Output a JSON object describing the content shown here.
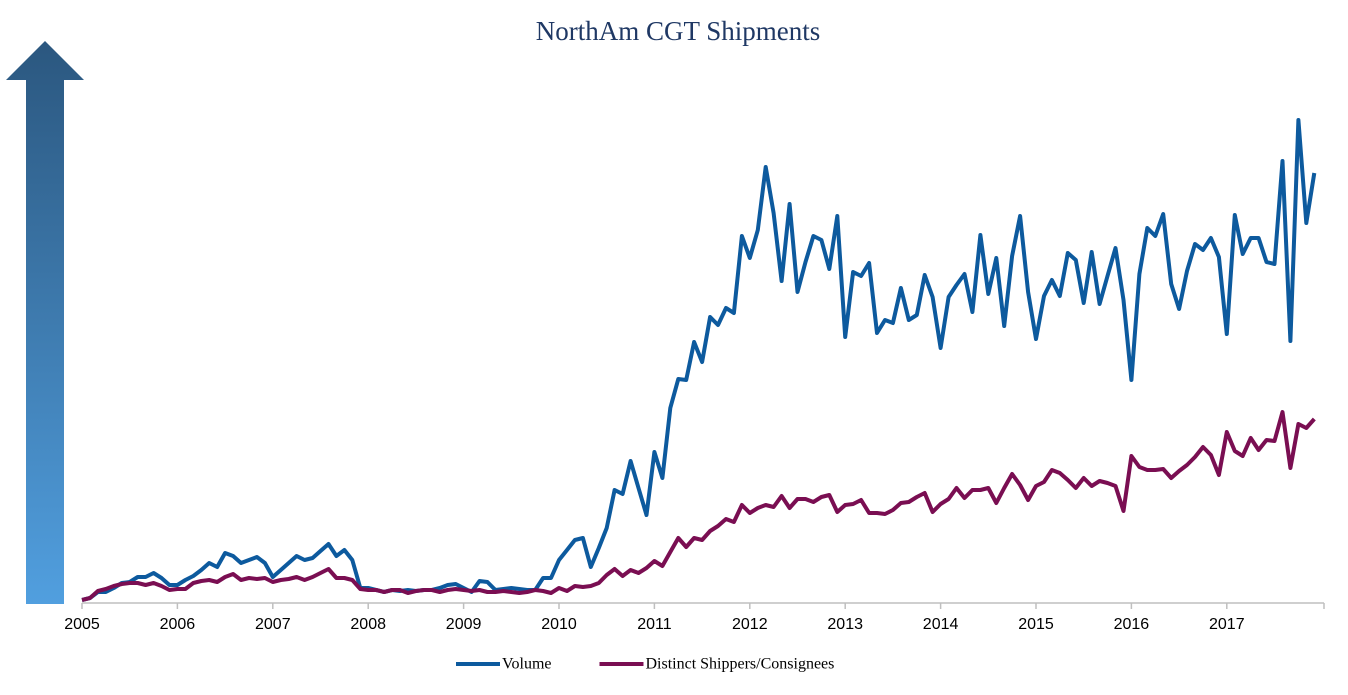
{
  "chart_data": {
    "type": "line",
    "title": "NorthAm CGT Shipments",
    "categories": [
      "2005",
      null,
      null,
      null,
      null,
      null,
      null,
      null,
      null,
      null,
      null,
      null,
      "2006",
      null,
      null,
      null,
      null,
      null,
      null,
      null,
      null,
      null,
      null,
      null,
      "2007",
      null,
      null,
      null,
      null,
      null,
      null,
      null,
      null,
      null,
      null,
      null,
      "2008",
      null,
      null,
      null,
      null,
      null,
      null,
      null,
      null,
      null,
      null,
      null,
      "2009",
      null,
      null,
      null,
      null,
      null,
      null,
      null,
      null,
      null,
      null,
      null,
      "2010",
      null,
      null,
      null,
      null,
      null,
      null,
      null,
      null,
      null,
      null,
      null,
      "2011",
      null,
      null,
      null,
      null,
      null,
      null,
      null,
      null,
      null,
      null,
      null,
      "2012",
      null,
      null,
      null,
      null,
      null,
      null,
      null,
      null,
      null,
      null,
      null,
      "2013",
      null,
      null,
      null,
      null,
      null,
      null,
      null,
      null,
      null,
      null,
      null,
      "2014",
      null,
      null,
      null,
      null,
      null,
      null,
      null,
      null,
      null,
      null,
      null,
      "2015",
      null,
      null,
      null,
      null,
      null,
      null,
      null,
      null,
      null,
      null,
      null,
      "2016",
      null,
      null,
      null,
      null,
      null,
      null,
      null,
      null,
      null,
      null,
      null,
      "2017",
      null,
      null,
      null,
      null,
      null,
      null,
      null,
      null,
      null,
      null,
      null
    ],
    "series": [
      {
        "name": "Volume",
        "color": "#0d5a9e",
        "values": [
          0.6,
          1,
          2.2,
          2.2,
          3,
          4,
          4.2,
          5.2,
          5.2,
          6,
          5,
          3.6,
          3.6,
          4.6,
          5.4,
          6.6,
          8,
          7.2,
          10,
          9.4,
          8,
          8.6,
          9.2,
          8,
          5.2,
          6.6,
          8,
          9.4,
          8.6,
          9,
          10.4,
          11.8,
          9.4,
          10.6,
          8.6,
          3,
          3,
          2.6,
          2.2,
          2.6,
          2.4,
          2.6,
          2.4,
          2.6,
          2.6,
          3,
          3.6,
          3.8,
          3,
          2.2,
          4.4,
          4.2,
          2.6,
          2.8,
          3,
          2.8,
          2.6,
          2.6,
          5,
          5,
          8.6,
          10.6,
          12.6,
          13,
          7.2,
          11,
          15,
          22.6,
          21.8,
          28.4,
          23,
          17.6,
          30.2,
          25,
          39,
          44.8,
          44.6,
          52.2,
          48.2,
          57.2,
          55.6,
          59,
          58,
          73.4,
          69,
          74.6,
          87.2,
          78,
          64.4,
          79.8,
          62.2,
          68.2,
          73.4,
          72.6,
          66.8,
          77.4,
          53.2,
          66.2,
          65.4,
          68,
          54,
          56.6,
          56,
          63,
          56.6,
          57.6,
          65.6,
          61.2,
          51,
          61.2,
          63.6,
          65.8,
          58.2,
          73.6,
          61.8,
          69,
          55.4,
          69.4,
          77.4,
          62.2,
          52.8,
          61.4,
          64.6,
          61.4,
          70,
          68.6,
          60,
          70.2,
          59.8,
          65.4,
          71,
          60.6,
          44.6,
          65.8,
          75,
          73.4,
          77.8,
          63.8,
          58.8,
          66.4,
          71.8,
          70.6,
          73,
          69.2,
          53.8,
          77.6,
          69.8,
          73,
          73,
          68.2,
          67.8,
          88.4,
          52.4,
          96.6,
          76,
          86
        ]
      },
      {
        "name": "Distinct Shippers/Consignees",
        "color": "#7a0e52",
        "values": [
          0.6,
          1,
          2.4,
          2.8,
          3.4,
          3.8,
          4,
          4,
          3.6,
          4,
          3.4,
          2.6,
          2.8,
          2.8,
          4,
          4.4,
          4.6,
          4.2,
          5.2,
          5.8,
          4.6,
          5,
          4.8,
          5,
          4.2,
          4.6,
          4.8,
          5.2,
          4.6,
          5.2,
          6,
          6.8,
          5,
          5,
          4.6,
          2.8,
          2.6,
          2.6,
          2.2,
          2.6,
          2.6,
          2,
          2.4,
          2.6,
          2.6,
          2.2,
          2.6,
          2.8,
          2.6,
          2.4,
          2.6,
          2.2,
          2.2,
          2.4,
          2.2,
          2,
          2.2,
          2.6,
          2.4,
          2,
          3,
          2.4,
          3.4,
          3.2,
          3.4,
          4,
          5.6,
          6.8,
          5.4,
          6.6,
          6,
          7,
          8.4,
          7.4,
          10.2,
          13,
          11.2,
          13,
          12.6,
          14.4,
          15.4,
          16.8,
          16.2,
          19.6,
          18,
          19,
          19.6,
          19.2,
          21.4,
          19,
          20.8,
          20.8,
          20.2,
          21.2,
          21.6,
          18.2,
          19.6,
          19.8,
          20.6,
          18,
          18,
          17.8,
          18.6,
          20,
          20.2,
          21.2,
          22,
          18.2,
          19.8,
          20.8,
          23,
          21,
          22.6,
          22.6,
          23,
          20,
          23,
          25.8,
          23.6,
          20.6,
          23.4,
          24.2,
          26.6,
          26,
          24.6,
          23,
          25,
          23.4,
          24.4,
          24,
          23.4,
          18.4,
          29.4,
          27.2,
          26.6,
          26.6,
          26.8,
          25,
          26.4,
          27.6,
          29.2,
          31.2,
          29.6,
          25.6,
          34.2,
          30.4,
          29.4,
          33,
          30.6,
          32.6,
          32.4,
          38.2,
          27,
          35.8,
          35,
          36.8
        ]
      }
    ],
    "ylim": [
      0,
      100
    ]
  }
}
